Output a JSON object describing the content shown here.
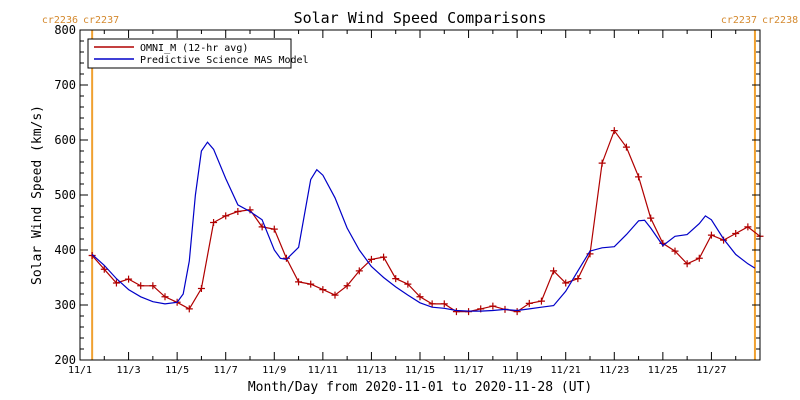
{
  "chart_data": {
    "type": "line",
    "title": "Solar Wind Speed Comparisons",
    "xlabel": "Month/Day from 2020-11-01 to 2020-11-28 (UT)",
    "ylabel": "Solar Wind Speed (km/s)",
    "ylim": [
      200,
      800
    ],
    "xlim": [
      "2020-11-01",
      "2020-11-29"
    ],
    "grid": false,
    "legend_position": "top-left",
    "x_ticks": [
      {
        "x": "2020-11-01",
        "label": "11/1"
      },
      {
        "x": "2020-11-03",
        "label": "11/3"
      },
      {
        "x": "2020-11-05",
        "label": "11/5"
      },
      {
        "x": "2020-11-07",
        "label": "11/7"
      },
      {
        "x": "2020-11-09",
        "label": "11/9"
      },
      {
        "x": "2020-11-11",
        "label": "11/11"
      },
      {
        "x": "2020-11-13",
        "label": "11/13"
      },
      {
        "x": "2020-11-15",
        "label": "11/15"
      },
      {
        "x": "2020-11-17",
        "label": "11/17"
      },
      {
        "x": "2020-11-19",
        "label": "11/19"
      },
      {
        "x": "2020-11-21",
        "label": "11/21"
      },
      {
        "x": "2020-11-23",
        "label": "11/23"
      },
      {
        "x": "2020-11-25",
        "label": "11/25"
      },
      {
        "x": "2020-11-27",
        "label": "11/27"
      }
    ],
    "y_ticks": [
      200,
      300,
      400,
      500,
      600,
      700,
      800
    ],
    "carrington_markers": [
      {
        "x": "2020-11-01T12:00",
        "left_label": "cr2236",
        "right_label": "cr2237",
        "label_side": "left",
        "color": "#f0a030"
      },
      {
        "x": "2020-11-28T19:00",
        "left_label": "cr2237",
        "right_label": "cr2238",
        "label_side": "right",
        "color": "#f0a030"
      }
    ],
    "series": [
      {
        "name": "OMNI_M (12-hr avg)",
        "color": "#b00000",
        "marker": "plus",
        "points": [
          [
            "2020-11-01T12:00",
            390
          ],
          [
            "2020-11-02T00:00",
            365
          ],
          [
            "2020-11-02T12:00",
            340
          ],
          [
            "2020-11-03T00:00",
            347
          ],
          [
            "2020-11-03T12:00",
            335
          ],
          [
            "2020-11-04T00:00",
            335
          ],
          [
            "2020-11-04T12:00",
            315
          ],
          [
            "2020-11-05T00:00",
            305
          ],
          [
            "2020-11-05T12:00",
            293
          ],
          [
            "2020-11-06T00:00",
            330
          ],
          [
            "2020-11-06T12:00",
            450
          ],
          [
            "2020-11-07T00:00",
            462
          ],
          [
            "2020-11-07T12:00",
            470
          ],
          [
            "2020-11-08T00:00",
            473
          ],
          [
            "2020-11-08T12:00",
            442
          ],
          [
            "2020-11-09T00:00",
            438
          ],
          [
            "2020-11-09T12:00",
            385
          ],
          [
            "2020-11-10T00:00",
            342
          ],
          [
            "2020-11-10T12:00",
            338
          ],
          [
            "2020-11-11T00:00",
            328
          ],
          [
            "2020-11-11T12:00",
            318
          ],
          [
            "2020-11-12T00:00",
            335
          ],
          [
            "2020-11-12T12:00",
            362
          ],
          [
            "2020-11-13T00:00",
            383
          ],
          [
            "2020-11-13T12:00",
            387
          ],
          [
            "2020-11-14T00:00",
            348
          ],
          [
            "2020-11-14T12:00",
            338
          ],
          [
            "2020-11-15T00:00",
            315
          ],
          [
            "2020-11-15T12:00",
            302
          ],
          [
            "2020-11-16T00:00",
            302
          ],
          [
            "2020-11-16T12:00",
            288
          ],
          [
            "2020-11-17T00:00",
            288
          ],
          [
            "2020-11-17T12:00",
            293
          ],
          [
            "2020-11-18T00:00",
            298
          ],
          [
            "2020-11-18T12:00",
            292
          ],
          [
            "2020-11-19T00:00",
            288
          ],
          [
            "2020-11-19T12:00",
            303
          ],
          [
            "2020-11-20T00:00",
            307
          ],
          [
            "2020-11-20T12:00",
            362
          ],
          [
            "2020-11-21T00:00",
            340
          ],
          [
            "2020-11-21T12:00",
            348
          ],
          [
            "2020-11-22T00:00",
            393
          ],
          [
            "2020-11-22T12:00",
            558
          ],
          [
            "2020-11-23T00:00",
            617
          ],
          [
            "2020-11-23T12:00",
            587
          ],
          [
            "2020-11-24T00:00",
            533
          ],
          [
            "2020-11-24T12:00",
            458
          ],
          [
            "2020-11-25T00:00",
            412
          ],
          [
            "2020-11-25T12:00",
            398
          ],
          [
            "2020-11-26T00:00",
            375
          ],
          [
            "2020-11-26T12:00",
            385
          ],
          [
            "2020-11-27T00:00",
            427
          ],
          [
            "2020-11-27T12:00",
            418
          ],
          [
            "2020-11-28T00:00",
            430
          ],
          [
            "2020-11-28T12:00",
            442
          ],
          [
            "2020-11-29T00:00",
            425
          ]
        ]
      },
      {
        "name": "Predictive Science MAS Model",
        "color": "#0000c8",
        "marker": "none",
        "points": [
          [
            "2020-11-01T12:00",
            392
          ],
          [
            "2020-11-02T00:00",
            372
          ],
          [
            "2020-11-02T12:00",
            348
          ],
          [
            "2020-11-03T00:00",
            328
          ],
          [
            "2020-11-03T12:00",
            315
          ],
          [
            "2020-11-04T00:00",
            306
          ],
          [
            "2020-11-04T12:00",
            302
          ],
          [
            "2020-11-05T00:00",
            305
          ],
          [
            "2020-11-05T06:00",
            320
          ],
          [
            "2020-11-05T12:00",
            380
          ],
          [
            "2020-11-05T18:00",
            500
          ],
          [
            "2020-11-06T00:00",
            580
          ],
          [
            "2020-11-06T06:00",
            596
          ],
          [
            "2020-11-06T12:00",
            583
          ],
          [
            "2020-11-07T00:00",
            530
          ],
          [
            "2020-11-07T12:00",
            482
          ],
          [
            "2020-11-08T00:00",
            470
          ],
          [
            "2020-11-08T12:00",
            455
          ],
          [
            "2020-11-09T00:00",
            400
          ],
          [
            "2020-11-09T06:00",
            385
          ],
          [
            "2020-11-09T12:00",
            383
          ],
          [
            "2020-11-10T00:00",
            405
          ],
          [
            "2020-11-10T12:00",
            528
          ],
          [
            "2020-11-10T18:00",
            546
          ],
          [
            "2020-11-11T00:00",
            536
          ],
          [
            "2020-11-11T12:00",
            495
          ],
          [
            "2020-11-12T00:00",
            440
          ],
          [
            "2020-11-12T12:00",
            400
          ],
          [
            "2020-11-13T00:00",
            370
          ],
          [
            "2020-11-13T12:00",
            350
          ],
          [
            "2020-11-14T00:00",
            333
          ],
          [
            "2020-11-14T12:00",
            318
          ],
          [
            "2020-11-15T00:00",
            304
          ],
          [
            "2020-11-15T12:00",
            296
          ],
          [
            "2020-11-16T00:00",
            294
          ],
          [
            "2020-11-16T12:00",
            290
          ],
          [
            "2020-11-17T00:00",
            289
          ],
          [
            "2020-11-17T12:00",
            289
          ],
          [
            "2020-11-18T00:00",
            290
          ],
          [
            "2020-11-18T12:00",
            292
          ],
          [
            "2020-11-19T00:00",
            290
          ],
          [
            "2020-11-19T12:00",
            293
          ],
          [
            "2020-11-20T00:00",
            296
          ],
          [
            "2020-11-20T12:00",
            299
          ],
          [
            "2020-11-21T00:00",
            325
          ],
          [
            "2020-11-21T12:00",
            362
          ],
          [
            "2020-11-22T00:00",
            398
          ],
          [
            "2020-11-22T12:00",
            404
          ],
          [
            "2020-11-23T00:00",
            406
          ],
          [
            "2020-11-23T12:00",
            428
          ],
          [
            "2020-11-24T00:00",
            453
          ],
          [
            "2020-11-24T06:00",
            454
          ],
          [
            "2020-11-24T12:00",
            440
          ],
          [
            "2020-11-25T00:00",
            408
          ],
          [
            "2020-11-25T12:00",
            425
          ],
          [
            "2020-11-26T00:00",
            428
          ],
          [
            "2020-11-26T12:00",
            448
          ],
          [
            "2020-11-26T18:00",
            462
          ],
          [
            "2020-11-27T00:00",
            455
          ],
          [
            "2020-11-27T12:00",
            420
          ],
          [
            "2020-11-28T00:00",
            392
          ],
          [
            "2020-11-28T12:00",
            375
          ],
          [
            "2020-11-28T19:00",
            367
          ]
        ]
      }
    ]
  }
}
